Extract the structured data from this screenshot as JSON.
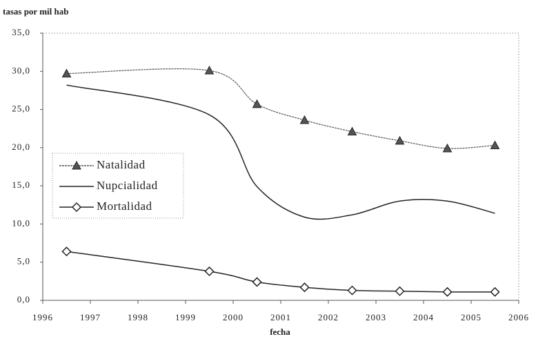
{
  "chart_data": {
    "type": "line",
    "y_axis_label": "tasas por mil hab",
    "x_axis_label": "fecha",
    "xlim": [
      1996,
      2006
    ],
    "xticks": [
      1996,
      1997,
      1998,
      1999,
      2000,
      2001,
      2002,
      2003,
      2004,
      2005,
      2006
    ],
    "ylim": [
      0,
      35
    ],
    "yticks": [
      {
        "value": 0,
        "label": "0,0"
      },
      {
        "value": 5,
        "label": "5,0"
      },
      {
        "value": 10,
        "label": "10,0"
      },
      {
        "value": 15,
        "label": "15,0"
      },
      {
        "value": 20,
        "label": "20,0"
      },
      {
        "value": 25,
        "label": "25,0"
      },
      {
        "value": 30,
        "label": "30,0"
      },
      {
        "value": 35,
        "label": "35,0"
      }
    ],
    "x": [
      1996.5,
      1999.5,
      2000.5,
      2001.5,
      2002.5,
      2003.5,
      2004.5,
      2005.5
    ],
    "series": [
      {
        "name": "Natalidad",
        "color": "#555555",
        "marker": "triangle",
        "values": [
          29.7,
          30.1,
          25.7,
          23.6,
          22.1,
          20.9,
          19.9,
          20.3
        ]
      },
      {
        "name": "Nupcialidad",
        "color": "#222222",
        "marker": "none",
        "values": [
          28.2,
          24.3,
          14.9,
          10.9,
          11.2,
          13.0,
          13.0,
          11.4
        ]
      },
      {
        "name": "Mortalidad",
        "color": "#222222",
        "marker": "diamond",
        "values": [
          6.4,
          3.8,
          2.4,
          1.7,
          1.3,
          1.2,
          1.1,
          1.1
        ]
      }
    ]
  }
}
